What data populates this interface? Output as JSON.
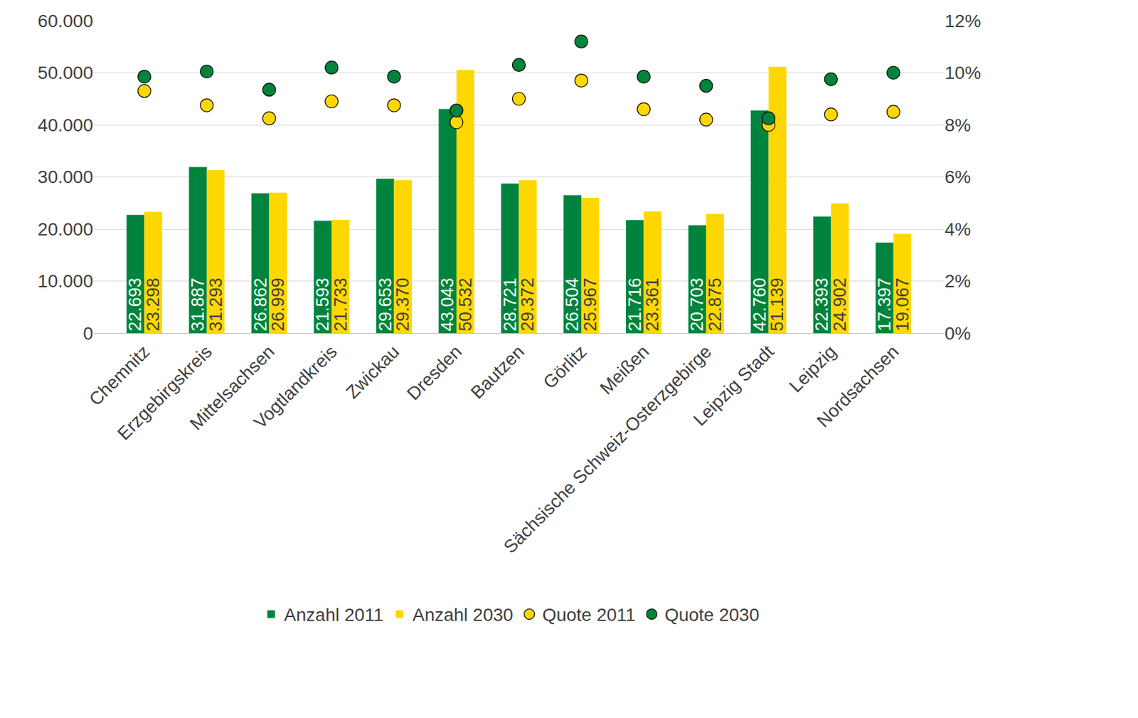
{
  "chart_data": {
    "type": "bar",
    "categories": [
      "Chemnitz",
      "Erzgebirgskreis",
      "Mittelsachsen",
      "Vogtlandkreis",
      "Zwickau",
      "Dresden",
      "Bautzen",
      "Görlitz",
      "Meißen",
      "Sächsische Schweiz-Osterzgebirge",
      "Leipzig Stadt",
      "Leipzig",
      "Nordsachsen"
    ],
    "series": [
      {
        "name": "Anzahl 2011",
        "type": "bar",
        "color": "#00843d",
        "values": [
          22693,
          31887,
          26862,
          21593,
          29653,
          43043,
          28721,
          26504,
          21716,
          20703,
          42760,
          22393,
          17397
        ],
        "value_labels": [
          "22.693",
          "31.887",
          "26.862",
          "21.593",
          "29.653",
          "43.043",
          "28.721",
          "26.504",
          "21.716",
          "20.703",
          "42.760",
          "22.393",
          "17.397"
        ]
      },
      {
        "name": "Anzahl 2030",
        "type": "bar",
        "color": "#ffd700",
        "values": [
          23298,
          31293,
          26999,
          21733,
          29370,
          50532,
          29372,
          25967,
          23361,
          22875,
          51139,
          24902,
          19067
        ],
        "value_labels": [
          "23.298",
          "31.293",
          "26.999",
          "21.733",
          "29.370",
          "50.532",
          "29.372",
          "25.967",
          "23.361",
          "22.875",
          "51.139",
          "24.902",
          "19.067"
        ]
      },
      {
        "name": "Quote 2011",
        "type": "scatter",
        "marker": "circle",
        "axis": "y2",
        "color": "#ffd700",
        "values": [
          9.3,
          8.75,
          8.25,
          8.9,
          8.75,
          8.1,
          9.0,
          9.7,
          8.6,
          8.2,
          8.0,
          8.4,
          8.5
        ]
      },
      {
        "name": "Quote 2030",
        "type": "scatter",
        "marker": "circle",
        "axis": "y2",
        "color": "#00843d",
        "values": [
          9.85,
          10.05,
          9.35,
          10.2,
          9.85,
          8.55,
          10.3,
          11.2,
          9.85,
          9.5,
          8.25,
          9.75,
          10.0
        ]
      }
    ],
    "ylim": [
      0,
      60000
    ],
    "yticks": [
      0,
      {
        "value": 10000,
        "label": "10.000"
      },
      {
        "value": 20000,
        "label": "20.000"
      },
      {
        "value": 30000,
        "label": "30.000"
      },
      {
        "value": 40000,
        "label": "40.000"
      },
      {
        "value": 50000,
        "label": "50.000"
      },
      {
        "value": 60000,
        "label": "60.000"
      }
    ],
    "y2lim": [
      0,
      12
    ],
    "y2ticks": [
      {
        "value": 0,
        "label": "0%"
      },
      {
        "value": 2,
        "label": "2%"
      },
      {
        "value": 4,
        "label": "4%"
      },
      {
        "value": 6,
        "label": "6%"
      },
      {
        "value": 8,
        "label": "8%"
      },
      {
        "value": 10,
        "label": "10%"
      },
      {
        "value": 12,
        "label": "12%"
      }
    ],
    "grid": true,
    "legend": "bottom",
    "data_labels": true
  }
}
